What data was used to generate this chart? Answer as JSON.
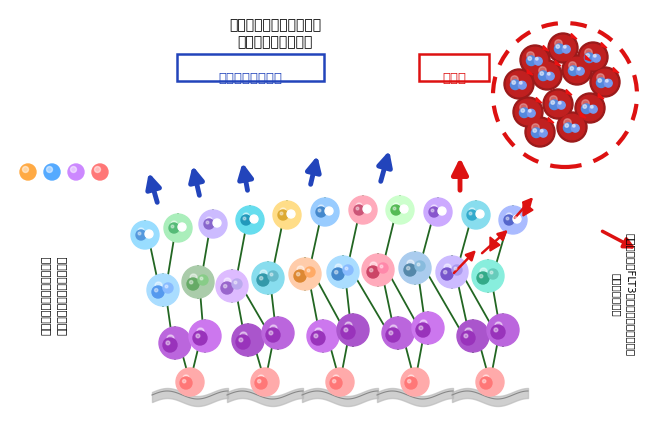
{
  "title_top1": "成熟した血液・免疫細胞",
  "title_top2": "体を病気から守る！",
  "label_normal": "正常な血液と免疫",
  "label_leukemia": "白血病",
  "text_left1": "遺伝子の変異ではあるが、",
  "text_left2": "白血病には変化させない。",
  "text_right1": "この遺伝子（FLT3）の異常が生じると、",
  "text_right2": "白血病になる。",
  "bg_color": "#ffffff",
  "arrow_blue": "#2244bb",
  "arrow_red": "#dd1111"
}
